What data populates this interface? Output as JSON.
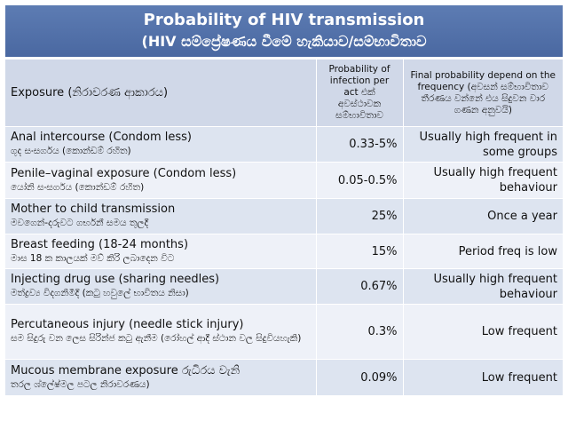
{
  "title": {
    "line1": "Probability of HIV transmission",
    "line2": "(HIV සම්ප්‍රේෂණය වීමේ හැකියාව/සම්භාවිතාව"
  },
  "headers": {
    "exposure": "Exposure (නිරාවරණ ආකාරය)",
    "probability_en": "Probability of infection per act",
    "probability_si": "එක් අවස්ථාවක සම්භාවිතාව",
    "final_en": "Final probability depend on the frequency",
    "final_si": "(අවසන් සම්භාවිතාව තීරණය වන්නේ එය සිදුවන වාර ගණන අනුවයි)"
  },
  "rows": [
    {
      "exposure_en": "Anal intercourse (Condom less)",
      "exposure_si": "ගුද සංසර්ගය (කොන්ඩම් රහිත)",
      "probability": "0.33-5%",
      "final": "Usually high frequent in some groups"
    },
    {
      "exposure_en": "Penile–vaginal exposure (Condom less)",
      "exposure_si": "යෝනි සංසර්ගය (කොන්ඩම් රහිත)",
      "probability": "0.05-0.5%",
      "final": "Usually high frequent behaviour"
    },
    {
      "exposure_en": "Mother to child transmission",
      "exposure_si": "මවගෙන්-දරුවට ගර්භනී සමය තුලදී",
      "probability": "25%",
      "final": "Once a year"
    },
    {
      "exposure_en": "Breast feeding (18-24 months)",
      "exposure_si": "මාස 18 ක කාලයක් මව් කිරි ලබාදෙන විට",
      "probability": "15%",
      "final": "Period freq is low"
    },
    {
      "exposure_en": "Injecting drug use (sharing needles)",
      "exposure_si": "මත්ද්‍රව්‍ය විදගනිමීදි (කටු හවුලේ භාවිතය නිසා)",
      "probability": "0.67%",
      "final": "Usually high frequent behaviour"
    },
    {
      "exposure_en": "Percutaneous injury (needle stick injury)",
      "exposure_si": "සම සිදුරු වන ලෙස සිරින්ජ කටු ඇනීම (රෝහල් ආදී ස්ථාන වල සිදුවියහැකි)",
      "probability": "0.3%",
      "final": "Low frequent"
    },
    {
      "exposure_en": "Mucous membrane exposure රුධිරය වැනි",
      "exposure_si": "තරල ශ්ලේෂ්මල පටල නිරාවරණය)",
      "probability": "0.09%",
      "final": "Low frequent"
    }
  ]
}
